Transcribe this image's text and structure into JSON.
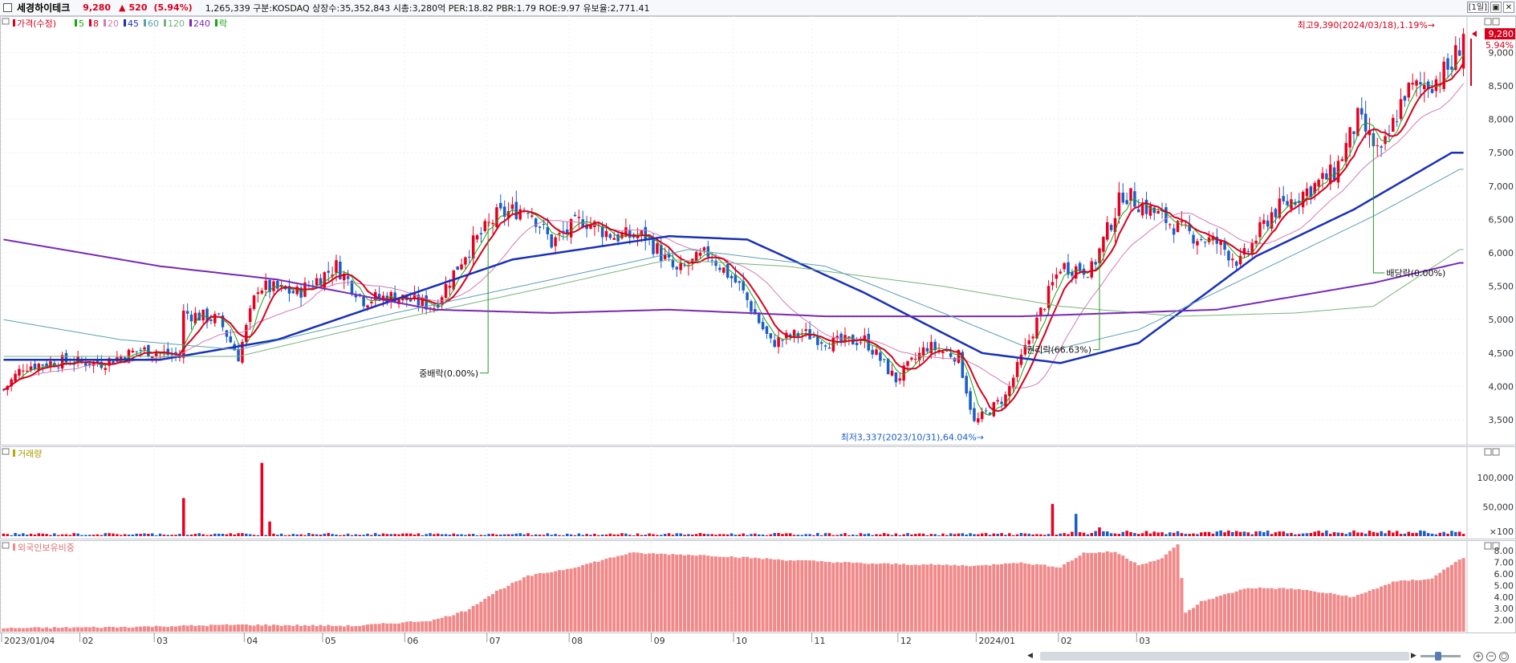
{
  "header": {
    "name": "세경하이테크",
    "price": "9,280",
    "arrow": "▲",
    "change": "520",
    "pct": "(5.94%)",
    "info": "1,265,339  구분:KOSDAQ 상장수:35,352,843 시총:3,280억 PER:18.82 PBR:1.79 ROE:9.97 유보율:2,771.41",
    "period_button": "1일",
    "restore_icon": "restore-icon",
    "close_icon": "close-icon"
  },
  "legend": {
    "items": [
      {
        "label": "가격(수정)",
        "color": "#d8001c"
      },
      {
        "label": "5",
        "color": "#14a814"
      },
      {
        "label": "8",
        "color": "#d8001c"
      },
      {
        "label": "20",
        "color": "#d27ab4"
      },
      {
        "label": "45",
        "color": "#1830b8"
      },
      {
        "label": "60",
        "color": "#5aa0b4"
      },
      {
        "label": "120",
        "color": "#78b478"
      },
      {
        "label": "240",
        "color": "#7828b4"
      },
      {
        "label": "락",
        "color": "#14a814"
      }
    ]
  },
  "panels": {
    "volume_title": "거래량",
    "foreign_title": "외국인보유비중"
  },
  "annotations": {
    "high": "최고9,390(2024/03/18),1.19%→",
    "low": "최저3,337(2023/10/31),64.04%→",
    "bonus_split": "중배락(0.00%)",
    "rights": "권리락(66.63%)",
    "dividend": "배당락(0.00%)"
  },
  "price_badge": {
    "price": "9,280",
    "pct": "5.94%"
  },
  "colors": {
    "up": "#e8001e",
    "down": "#1a5cc8",
    "foreign_bar": "#f08a8a"
  },
  "chart_data": {
    "type": "candlestick",
    "x_labels": [
      "2023/01/04",
      "02",
      "03",
      "04",
      "05",
      "06",
      "07",
      "08",
      "09",
      "10",
      "11",
      "12",
      "2024/01",
      "02",
      "03"
    ],
    "price_axis": {
      "ticks": [
        "9,000",
        "8,500",
        "8,000",
        "7,500",
        "7,000",
        "6,500",
        "6,000",
        "5,500",
        "5,000",
        "4,500",
        "4,000",
        "3,500"
      ],
      "range": [
        3200,
        9450
      ]
    },
    "volume_axis": {
      "ticks": [
        "100,000",
        "50,000",
        "×100"
      ],
      "range": [
        0,
        130000
      ]
    },
    "foreign_axis": {
      "ticks": [
        "8.00",
        "7.00",
        "6.00",
        "5.00",
        "4.00",
        "3.00",
        "2.00"
      ],
      "range": [
        1.0,
        8.7
      ]
    },
    "price_keypoints": [
      [
        0,
        3950
      ],
      [
        5,
        4300
      ],
      [
        15,
        4380
      ],
      [
        25,
        4350
      ],
      [
        35,
        4550
      ],
      [
        45,
        4450
      ],
      [
        46,
        5100
      ],
      [
        55,
        5000
      ],
      [
        60,
        4450
      ],
      [
        65,
        5500
      ],
      [
        75,
        5400
      ],
      [
        85,
        5800
      ],
      [
        92,
        5300
      ],
      [
        100,
        5350
      ],
      [
        110,
        5200
      ],
      [
        118,
        6000
      ],
      [
        126,
        6550
      ],
      [
        134,
        6700
      ],
      [
        140,
        6150
      ],
      [
        148,
        6500
      ],
      [
        156,
        6250
      ],
      [
        164,
        6250
      ],
      [
        172,
        5700
      ],
      [
        180,
        6000
      ],
      [
        188,
        5500
      ],
      [
        196,
        4650
      ],
      [
        204,
        4800
      ],
      [
        212,
        4650
      ],
      [
        220,
        4700
      ],
      [
        228,
        4100
      ],
      [
        236,
        4600
      ],
      [
        244,
        4450
      ],
      [
        248,
        3450
      ],
      [
        256,
        3850
      ],
      [
        262,
        4700
      ],
      [
        270,
        5800
      ],
      [
        278,
        5750
      ],
      [
        286,
        6900
      ],
      [
        294,
        6600
      ],
      [
        302,
        6300
      ],
      [
        310,
        6150
      ],
      [
        316,
        5850
      ],
      [
        324,
        6600
      ],
      [
        332,
        6900
      ],
      [
        340,
        7200
      ],
      [
        346,
        8000
      ],
      [
        352,
        7450
      ],
      [
        358,
        8400
      ],
      [
        366,
        8600
      ],
      [
        370,
        8800
      ],
      [
        373,
        9280
      ]
    ],
    "ma_series": [
      {
        "label": "45",
        "keypoints": [
          [
            0,
            4400
          ],
          [
            40,
            4400
          ],
          [
            70,
            4700
          ],
          [
            100,
            5300
          ],
          [
            130,
            5900
          ],
          [
            170,
            6250
          ],
          [
            190,
            6200
          ],
          [
            220,
            5400
          ],
          [
            250,
            4500
          ],
          [
            270,
            4350
          ],
          [
            290,
            4650
          ],
          [
            320,
            5950
          ],
          [
            345,
            6650
          ],
          [
            370,
            7500
          ]
        ]
      },
      {
        "label": "120",
        "keypoints": [
          [
            0,
            4450
          ],
          [
            60,
            4450
          ],
          [
            100,
            5000
          ],
          [
            140,
            5500
          ],
          [
            170,
            5900
          ],
          [
            200,
            5800
          ],
          [
            240,
            5500
          ],
          [
            270,
            5200
          ],
          [
            300,
            5050
          ],
          [
            330,
            5100
          ],
          [
            350,
            5200
          ],
          [
            372,
            6050
          ]
        ]
      },
      {
        "label": "240",
        "keypoints": [
          [
            0,
            6200
          ],
          [
            40,
            5800
          ],
          [
            70,
            5600
          ],
          [
            110,
            5150
          ],
          [
            140,
            5100
          ],
          [
            170,
            5150
          ],
          [
            210,
            5050
          ],
          [
            260,
            5050
          ],
          [
            310,
            5150
          ],
          [
            350,
            5550
          ],
          [
            372,
            5850
          ]
        ]
      },
      {
        "label": "60",
        "keypoints": [
          [
            0,
            5000
          ],
          [
            30,
            4700
          ],
          [
            60,
            4550
          ],
          [
            100,
            5100
          ],
          [
            140,
            5600
          ],
          [
            175,
            6050
          ],
          [
            210,
            5800
          ],
          [
            240,
            5100
          ],
          [
            265,
            4500
          ],
          [
            290,
            4850
          ],
          [
            320,
            5700
          ],
          [
            350,
            6550
          ],
          [
            372,
            7250
          ]
        ]
      }
    ],
    "volume_spikes": [
      [
        46,
        65000
      ],
      [
        66,
        125000
      ],
      [
        68,
        25000
      ],
      [
        268,
        55000
      ],
      [
        274,
        38000
      ],
      [
        280,
        15000
      ]
    ],
    "foreign_keypoints": [
      [
        0,
        1.3
      ],
      [
        30,
        1.4
      ],
      [
        60,
        1.6
      ],
      [
        90,
        1.5
      ],
      [
        110,
        2.0
      ],
      [
        118,
        2.8
      ],
      [
        126,
        4.5
      ],
      [
        134,
        5.8
      ],
      [
        145,
        6.5
      ],
      [
        160,
        7.8
      ],
      [
        180,
        7.6
      ],
      [
        200,
        7.2
      ],
      [
        220,
        6.9
      ],
      [
        250,
        6.7
      ],
      [
        258,
        7.0
      ],
      [
        270,
        6.6
      ],
      [
        276,
        7.8
      ],
      [
        284,
        7.9
      ],
      [
        290,
        6.8
      ],
      [
        296,
        7.3
      ],
      [
        300,
        8.6
      ],
      [
        302,
        2.6
      ],
      [
        306,
        3.6
      ],
      [
        318,
        4.8
      ],
      [
        330,
        4.7
      ],
      [
        345,
        4.0
      ],
      [
        355,
        5.3
      ],
      [
        365,
        5.6
      ],
      [
        372,
        7.3
      ]
    ],
    "ylim_price": [
      3200,
      9450
    ]
  }
}
